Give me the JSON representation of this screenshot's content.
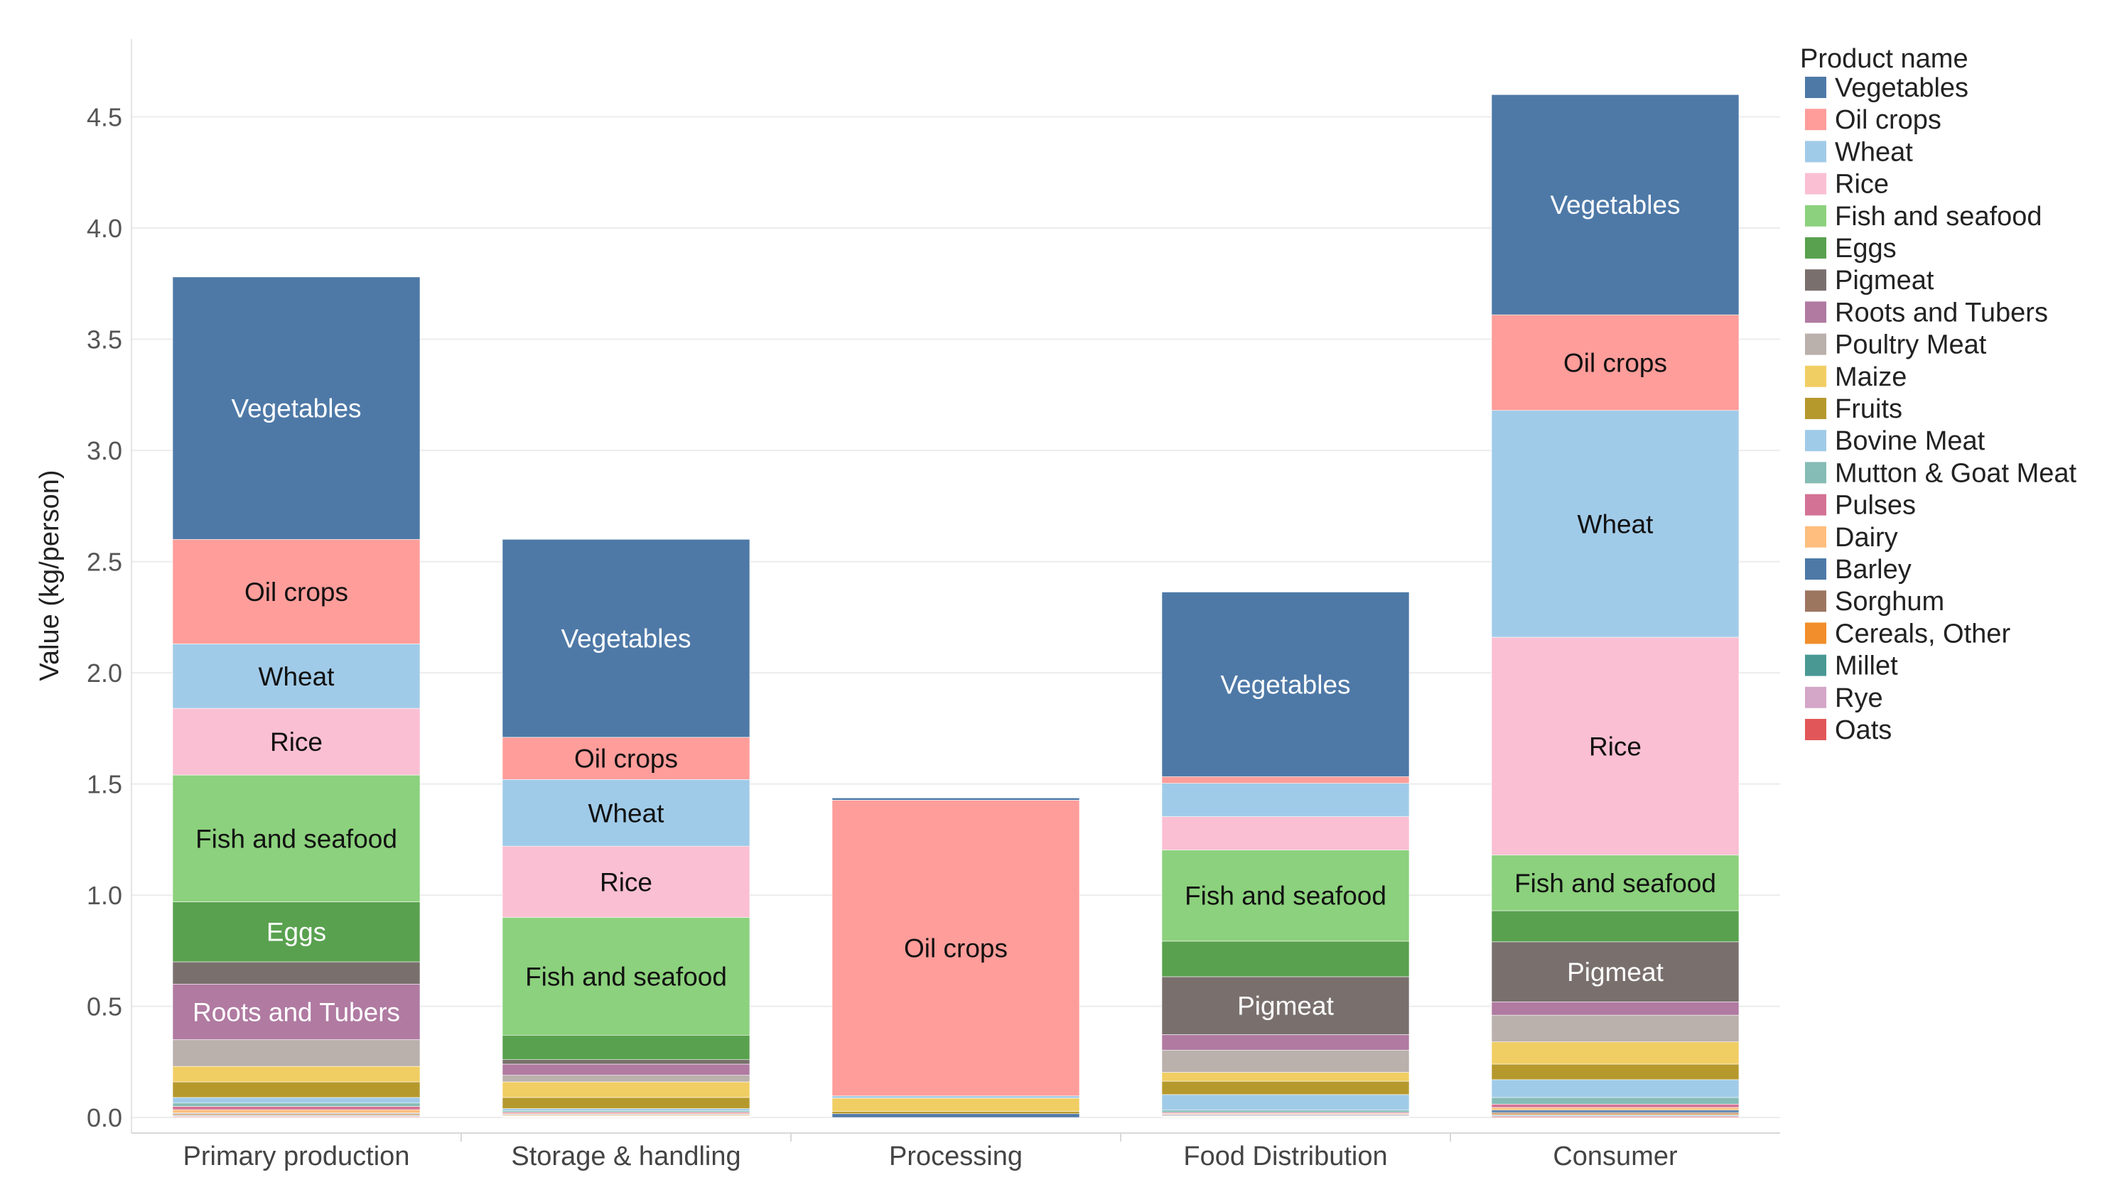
{
  "chart_data": {
    "type": "bar",
    "stacked": true,
    "ylabel": "Value (kg/person)",
    "xlabel": "",
    "ylim": [
      -0.07,
      4.85
    ],
    "yticks": [
      0.0,
      0.5,
      1.0,
      1.5,
      2.0,
      2.5,
      3.0,
      3.5,
      4.0,
      4.5
    ],
    "ytick_labels": [
      "0.0",
      "0.5",
      "1.0",
      "1.5",
      "2.0",
      "2.5",
      "3.0",
      "3.5",
      "4.0",
      "4.5"
    ],
    "grid": true,
    "legend_position": "right",
    "legend_title": "Product name",
    "categories": [
      "Primary production",
      "Storage & handling",
      "Processing",
      "Food Distribution",
      "Consumer"
    ],
    "series": [
      {
        "name": "Oats",
        "color": "#E15759",
        "values": [
          0.003,
          0.002,
          0.0,
          0.002,
          0.004
        ]
      },
      {
        "name": "Rye",
        "color": "#D4A6C8",
        "values": [
          0.003,
          0.002,
          0.0,
          0.002,
          0.004
        ]
      },
      {
        "name": "Millet",
        "color": "#499894",
        "values": [
          0.003,
          0.002,
          0.0,
          0.002,
          0.004
        ]
      },
      {
        "name": "Cereals, Other",
        "color": "#F28E2B",
        "values": [
          0.004,
          0.003,
          0.0,
          0.002,
          0.005
        ]
      },
      {
        "name": "Sorghum",
        "color": "#9D7660",
        "values": [
          0.004,
          0.003,
          0.0,
          0.003,
          0.006
        ]
      },
      {
        "name": "Barley",
        "color": "#4E79A7",
        "values": [
          0.003,
          0.003,
          0.017,
          0.003,
          0.01
        ]
      },
      {
        "name": "Dairy",
        "color": "#FFBE7D",
        "values": [
          0.015,
          0.004,
          0.0,
          0.004,
          0.012
        ]
      },
      {
        "name": "Pulses",
        "color": "#D37295",
        "values": [
          0.015,
          0.005,
          0.0,
          0.005,
          0.015
        ]
      },
      {
        "name": "Mutton & Goat Meat",
        "color": "#86BCB6",
        "values": [
          0.015,
          0.006,
          0.0,
          0.01,
          0.03
        ]
      },
      {
        "name": "Bovine Meat",
        "color": "#A0CBE8",
        "values": [
          0.025,
          0.01,
          0.0,
          0.07,
          0.08
        ]
      },
      {
        "name": "Fruits",
        "color": "#B6992D",
        "values": [
          0.07,
          0.05,
          0.01,
          0.06,
          0.07
        ]
      },
      {
        "name": "Maize",
        "color": "#F1CE63",
        "values": [
          0.07,
          0.07,
          0.06,
          0.04,
          0.1
        ]
      },
      {
        "name": "Poultry Meat",
        "color": "#BAB0AC",
        "values": [
          0.12,
          0.03,
          0.0,
          0.1,
          0.12
        ]
      },
      {
        "name": "Roots and Tubers",
        "color": "#B07AA1",
        "values": [
          0.25,
          0.05,
          0.0,
          0.07,
          0.06
        ]
      },
      {
        "name": "Pigmeat",
        "color": "#79706E",
        "values": [
          0.1,
          0.02,
          0.0,
          0.26,
          0.27
        ]
      },
      {
        "name": "Eggs",
        "color": "#59A14F",
        "values": [
          0.27,
          0.11,
          0.0,
          0.16,
          0.14
        ]
      },
      {
        "name": "Fish and seafood",
        "color": "#8CD17D",
        "values": [
          0.57,
          0.53,
          0.0,
          0.41,
          0.25
        ]
      },
      {
        "name": "Rice",
        "color": "#FABFD2",
        "values": [
          0.3,
          0.32,
          0.0,
          0.15,
          0.98
        ]
      },
      {
        "name": "Wheat",
        "color": "#A0CBE8",
        "values": [
          0.29,
          0.3,
          0.01,
          0.15,
          1.02
        ]
      },
      {
        "name": "Oil crops",
        "color": "#FF9D9A",
        "values": [
          0.47,
          0.19,
          1.33,
          0.03,
          0.43
        ]
      },
      {
        "name": "Vegetables",
        "color": "#4E79A7",
        "values": [
          1.18,
          0.89,
          0.01,
          0.83,
          0.99
        ]
      }
    ],
    "segment_labels": [
      {
        "category": "Primary production",
        "series": "Vegetables",
        "text": "Vegetables"
      },
      {
        "category": "Primary production",
        "series": "Oil crops",
        "text": "Oil crops"
      },
      {
        "category": "Primary production",
        "series": "Wheat",
        "text": "Wheat"
      },
      {
        "category": "Primary production",
        "series": "Rice",
        "text": "Rice"
      },
      {
        "category": "Primary production",
        "series": "Fish and seafood",
        "text": "Fish and seafood"
      },
      {
        "category": "Primary production",
        "series": "Eggs",
        "text": "Eggs"
      },
      {
        "category": "Primary production",
        "series": "Roots and Tubers",
        "text": "Roots and Tubers"
      },
      {
        "category": "Storage & handling",
        "series": "Vegetables",
        "text": "Vegetables"
      },
      {
        "category": "Storage & handling",
        "series": "Oil crops",
        "text": "Oil crops"
      },
      {
        "category": "Storage & handling",
        "series": "Wheat",
        "text": "Wheat"
      },
      {
        "category": "Storage & handling",
        "series": "Rice",
        "text": "Rice"
      },
      {
        "category": "Storage & handling",
        "series": "Fish and seafood",
        "text": "Fish and seafood"
      },
      {
        "category": "Processing",
        "series": "Oil crops",
        "text": "Oil crops"
      },
      {
        "category": "Food Distribution",
        "series": "Vegetables",
        "text": "Vegetables"
      },
      {
        "category": "Food Distribution",
        "series": "Fish and seafood",
        "text": "Fish and seafood"
      },
      {
        "category": "Food Distribution",
        "series": "Pigmeat",
        "text": "Pigmeat"
      },
      {
        "category": "Consumer",
        "series": "Vegetables",
        "text": "Vegetables"
      },
      {
        "category": "Consumer",
        "series": "Oil crops",
        "text": "Oil crops"
      },
      {
        "category": "Consumer",
        "series": "Wheat",
        "text": "Wheat"
      },
      {
        "category": "Consumer",
        "series": "Rice",
        "text": "Rice"
      },
      {
        "category": "Consumer",
        "series": "Fish and seafood",
        "text": "Fish and seafood"
      },
      {
        "category": "Consumer",
        "series": "Pigmeat",
        "text": "Pigmeat"
      }
    ],
    "legend_items": [
      {
        "name": "Vegetables",
        "color": "#4E79A7"
      },
      {
        "name": "Oil crops",
        "color": "#FF9D9A"
      },
      {
        "name": "Wheat",
        "color": "#A0CBE8"
      },
      {
        "name": "Rice",
        "color": "#FABFD2"
      },
      {
        "name": "Fish and seafood",
        "color": "#8CD17D"
      },
      {
        "name": "Eggs",
        "color": "#59A14F"
      },
      {
        "name": "Pigmeat",
        "color": "#79706E"
      },
      {
        "name": "Roots and Tubers",
        "color": "#B07AA1"
      },
      {
        "name": "Poultry Meat",
        "color": "#BAB0AC"
      },
      {
        "name": "Maize",
        "color": "#F1CE63"
      },
      {
        "name": "Fruits",
        "color": "#B6992D"
      },
      {
        "name": "Bovine Meat",
        "color": "#A0CBE8"
      },
      {
        "name": "Mutton & Goat Meat",
        "color": "#86BCB6"
      },
      {
        "name": "Pulses",
        "color": "#D37295"
      },
      {
        "name": "Dairy",
        "color": "#FFBE7D"
      },
      {
        "name": "Barley",
        "color": "#4E79A7"
      },
      {
        "name": "Sorghum",
        "color": "#9D7660"
      },
      {
        "name": "Cereals, Other",
        "color": "#F28E2B"
      },
      {
        "name": "Millet",
        "color": "#499894"
      },
      {
        "name": "Rye",
        "color": "#D4A6C8"
      },
      {
        "name": "Oats",
        "color": "#E15759"
      }
    ]
  }
}
